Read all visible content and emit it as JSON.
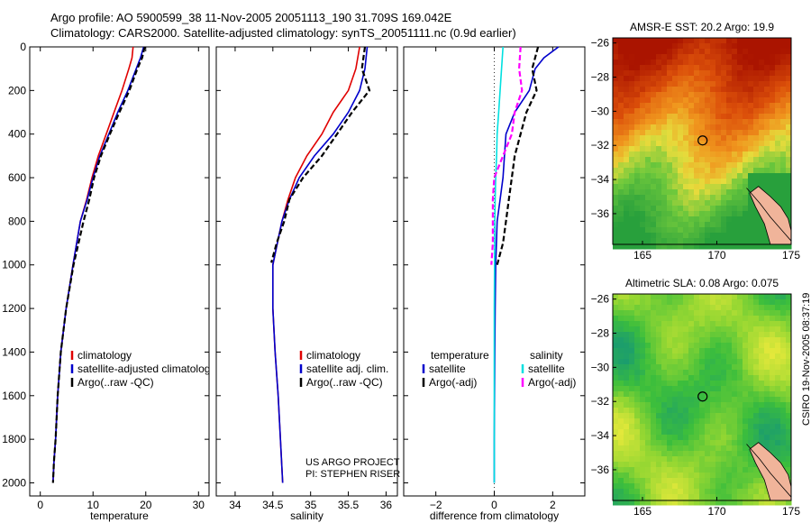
{
  "header": {
    "line1": "Argo profile: AO 5900599_38 11-Nov-2005 20051113_190 31.709S 169.042E",
    "line2": "Climatology: CARS2000. Satellite-adjusted climatology: synTS_20051111.nc (0.9d earlier)"
  },
  "credits": {
    "project": "US ARGO PROJECT",
    "pi": "PI: STEPHEN RISER",
    "side": "CSIRO 19-Nov-2005 08:37:19"
  },
  "colors": {
    "climatology": "#e00000",
    "satellite": "#0000cc",
    "argo": "#000000",
    "sat_salinity": "#00e0e0",
    "argo_salinity": "#ff00ff"
  },
  "chart_data": [
    {
      "type": "line",
      "xlabel": "temperature",
      "ylabel": "",
      "xlim": [
        -2,
        32
      ],
      "ylim": [
        2060,
        0
      ],
      "xticks": [
        0,
        10,
        20,
        30
      ],
      "yticks": [
        0,
        200,
        400,
        600,
        800,
        1000,
        1200,
        1400,
        1600,
        1800,
        2000
      ],
      "legend": [
        "climatology",
        "satellite-adjusted climatology",
        "Argo(..raw -QC)"
      ],
      "series": [
        {
          "name": "climatology",
          "style": "solid",
          "color": "#e00000",
          "x": [
            17.6,
            17.4,
            16.8,
            15.5,
            14.0,
            12.5,
            11.0,
            9.8,
            8.8,
            7.6,
            6.2,
            4.9,
            3.9,
            3.3,
            2.9,
            2.6,
            2.4
          ],
          "y": [
            0,
            50,
            100,
            200,
            300,
            400,
            500,
            600,
            700,
            800,
            1000,
            1200,
            1400,
            1600,
            1800,
            1900,
            2000
          ]
        },
        {
          "name": "satellite-adjusted climatology",
          "style": "solid",
          "color": "#0000cc",
          "x": [
            19.6,
            19.0,
            18.2,
            16.6,
            14.7,
            13.0,
            11.3,
            10.0,
            8.9,
            7.6,
            6.2,
            4.9,
            3.9,
            3.3,
            2.9,
            2.6,
            2.4
          ],
          "y": [
            0,
            50,
            100,
            200,
            300,
            400,
            500,
            600,
            700,
            800,
            1000,
            1200,
            1400,
            1600,
            1800,
            1900,
            2000
          ]
        },
        {
          "name": "Argo(..raw -QC)",
          "style": "dash",
          "color": "#000000",
          "x": [
            19.8,
            19.3,
            18.4,
            16.9,
            15.0,
            13.2,
            11.5,
            10.2,
            9.3,
            8.2,
            6.3,
            4.9,
            3.9,
            3.3,
            2.9,
            2.6,
            2.4
          ],
          "y": [
            0,
            50,
            100,
            200,
            300,
            400,
            500,
            600,
            700,
            800,
            1000,
            1200,
            1400,
            1600,
            1800,
            1900,
            2000
          ]
        }
      ]
    },
    {
      "type": "line",
      "xlabel": "salinity",
      "ylabel": "",
      "xlim": [
        33.75,
        36.15
      ],
      "ylim": [
        2060,
        0
      ],
      "xticks": [
        34,
        34.5,
        35,
        35.5,
        36
      ],
      "yticks": [
        0,
        200,
        400,
        600,
        800,
        1000,
        1200,
        1400,
        1600,
        1800,
        2000
      ],
      "legend": [
        "climatology",
        "satellite adj. clim.",
        "Argo(..raw -QC)"
      ],
      "series": [
        {
          "name": "climatology",
          "style": "solid",
          "color": "#e00000",
          "x": [
            35.65,
            35.6,
            35.5,
            35.3,
            35.15,
            34.95,
            34.8,
            34.7,
            34.62,
            34.56,
            34.5,
            34.5,
            34.53,
            34.57,
            34.6,
            34.63
          ],
          "y": [
            0,
            100,
            200,
            300,
            400,
            500,
            600,
            700,
            800,
            900,
            1000,
            1200,
            1400,
            1600,
            1800,
            2000
          ]
        },
        {
          "name": "satellite adj. clim.",
          "style": "solid",
          "color": "#0000cc",
          "x": [
            35.75,
            35.72,
            35.65,
            35.5,
            35.3,
            35.05,
            34.85,
            34.72,
            34.62,
            34.56,
            34.5,
            34.5,
            34.53,
            34.57,
            34.6,
            34.63
          ],
          "y": [
            0,
            100,
            200,
            300,
            400,
            500,
            600,
            700,
            800,
            900,
            1000,
            1200,
            1400,
            1600,
            1800,
            2000
          ]
        },
        {
          "name": "Argo(..raw -QC)",
          "style": "dash",
          "color": "#000000",
          "x": [
            35.72,
            35.68,
            35.78,
            35.55,
            35.35,
            35.15,
            34.9,
            34.72,
            34.65,
            34.55,
            34.48
          ],
          "y": [
            0,
            100,
            200,
            300,
            400,
            500,
            600,
            700,
            800,
            900,
            990
          ]
        }
      ]
    },
    {
      "type": "line",
      "xlabel": "difference from climatology",
      "ylabel": "",
      "xlim": [
        -3.1,
        3.1
      ],
      "ylim": [
        2060,
        0
      ],
      "xticks": [
        -2,
        0,
        2
      ],
      "yticks": [
        0,
        200,
        400,
        600,
        800,
        1000,
        1200,
        1400,
        1600,
        1800,
        2000
      ],
      "legend": [
        "temperature",
        "satellite",
        "Argo(-adj)",
        "salinity",
        "satellite",
        "Argo(-adj)"
      ],
      "series": [
        {
          "name": "temperature satellite",
          "style": "solid",
          "color": "#0000cc",
          "x": [
            2.2,
            1.7,
            1.4,
            1.2,
            0.7,
            0.4,
            0.35,
            0.3,
            0.2,
            0.1,
            0.05,
            0.03,
            0.02,
            0.01,
            0.0,
            0.0
          ],
          "y": [
            0,
            50,
            100,
            200,
            300,
            400,
            500,
            600,
            700,
            800,
            1000,
            1200,
            1400,
            1600,
            1800,
            2000
          ]
        },
        {
          "name": "temperature Argo(-adj)",
          "style": "dash",
          "color": "#000000",
          "x": [
            1.5,
            1.3,
            1.45,
            1.1,
            0.9,
            0.7,
            0.6,
            0.5,
            0.4,
            0.3,
            0.1
          ],
          "y": [
            0,
            100,
            200,
            300,
            400,
            500,
            600,
            700,
            800,
            900,
            1000
          ]
        },
        {
          "name": "salinity satellite",
          "style": "solid",
          "color": "#00e0e0",
          "x": [
            0.3,
            0.25,
            0.2,
            0.15,
            0.1,
            0.08,
            0.05,
            0.03,
            0.02,
            0.01,
            0.0,
            0.0,
            0.0,
            0.0,
            0.0
          ],
          "y": [
            0,
            100,
            200,
            300,
            400,
            500,
            600,
            700,
            800,
            1000,
            1200,
            1400,
            1600,
            1800,
            2000
          ]
        },
        {
          "name": "salinity Argo(-adj)",
          "style": "dash",
          "color": "#ff00ff",
          "x": [
            0.9,
            0.85,
            0.95,
            0.7,
            0.6,
            0.3,
            0.0,
            -0.05,
            -0.05,
            -0.05,
            -0.1
          ],
          "y": [
            0,
            100,
            200,
            300,
            400,
            500,
            600,
            700,
            800,
            900,
            1000
          ]
        }
      ]
    },
    {
      "type": "heatmap",
      "title": "AMSR-E SST: 20.2 Argo: 19.9",
      "xlim": [
        163,
        175
      ],
      "ylim": [
        -37.8,
        -25.7
      ],
      "xticks": [
        165,
        170,
        175
      ],
      "yticks": [
        -26,
        -28,
        -30,
        -32,
        -34,
        -36
      ],
      "float_position": {
        "lon": 169.042,
        "lat": -31.709
      }
    },
    {
      "type": "heatmap",
      "title": "Altimetric SLA: 0.08 Argo: 0.075",
      "xlim": [
        163,
        175
      ],
      "ylim": [
        -37.8,
        -25.7
      ],
      "xticks": [
        165,
        170,
        175
      ],
      "yticks": [
        -26,
        -28,
        -30,
        -32,
        -34,
        -36
      ],
      "float_position": {
        "lon": 169.042,
        "lat": -31.709
      }
    }
  ]
}
